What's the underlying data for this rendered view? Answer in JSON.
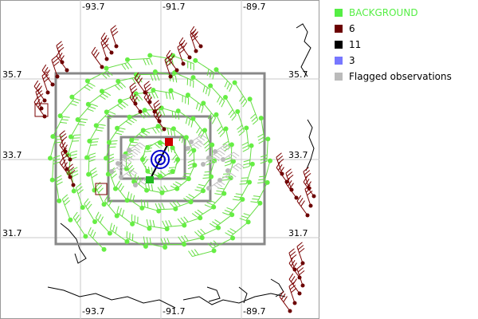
{
  "map": {
    "lon_ticks_top": [
      "-93.7",
      "-91.7",
      "-89.7"
    ],
    "lon_ticks_bottom": [
      "-93.7",
      "-91.7",
      "-89.7"
    ],
    "lat_ticks": [
      "35.7",
      "33.7",
      "31.7"
    ]
  },
  "legend": {
    "items": [
      {
        "label": "BACKGROUND",
        "color": "#55ee44",
        "text_color": "#55ee44"
      },
      {
        "label": "6",
        "color": "#6b0000",
        "text_color": "#000000"
      },
      {
        "label": "11",
        "color": "#000000",
        "text_color": "#000000"
      },
      {
        "label": "3",
        "color": "#7777ff",
        "text_color": "#000000"
      },
      {
        "label": "Flagged observations",
        "color": "#bbbbbb",
        "text_color": "#000000"
      }
    ]
  }
}
